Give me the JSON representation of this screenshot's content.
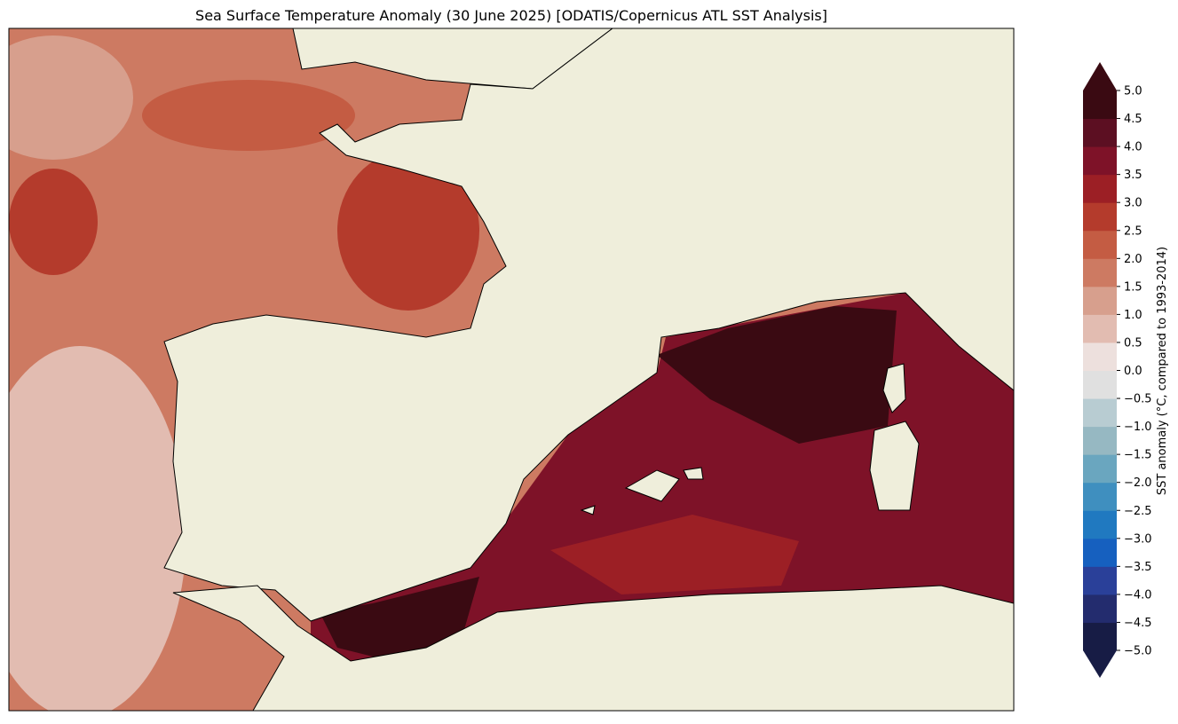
{
  "title": "Sea Surface Temperature Anomaly (30 June 2025) [ODATIS/Copernicus ATL SST Analysis]",
  "colorbar": {
    "label": "SST anomaly (°C, compared to 1993-2014)",
    "lim": [
      -5,
      5
    ],
    "ticks": [
      {
        "value": -5,
        "label": "−5.0"
      },
      {
        "value": -4.5,
        "label": "−4.5"
      },
      {
        "value": -4,
        "label": "−4.0"
      },
      {
        "value": -3.5,
        "label": "−3.5"
      },
      {
        "value": -3,
        "label": "−3.0"
      },
      {
        "value": -2.5,
        "label": "−2.5"
      },
      {
        "value": -2,
        "label": "−2.0"
      },
      {
        "value": -1.5,
        "label": "−1.5"
      },
      {
        "value": -1,
        "label": "−1.0"
      },
      {
        "value": -0.5,
        "label": "−0.5"
      },
      {
        "value": 0,
        "label": "0.0"
      },
      {
        "value": 0.5,
        "label": "0.5"
      },
      {
        "value": 1,
        "label": "1.0"
      },
      {
        "value": 1.5,
        "label": "1.5"
      },
      {
        "value": 2,
        "label": "2.0"
      },
      {
        "value": 2.5,
        "label": "2.5"
      },
      {
        "value": 3,
        "label": "3.0"
      },
      {
        "value": 3.5,
        "label": "3.5"
      },
      {
        "value": 4,
        "label": "4.0"
      },
      {
        "value": 4.5,
        "label": "4.5"
      },
      {
        "value": 5,
        "label": "5.0"
      }
    ],
    "colors": [
      "#171c45",
      "#232c6e",
      "#2a4099",
      "#1660bf",
      "#2079c0",
      "#3f8fbf",
      "#6aa6bf",
      "#96b8c2",
      "#b8ccd2",
      "#e0e0e0",
      "#ede0dd",
      "#e2bcb1",
      "#d79f8d",
      "#cd7a62",
      "#c45c43",
      "#b43b2c",
      "#9c1f25",
      "#7e1228",
      "#5c0f22",
      "#3a0a12"
    ],
    "extend": true
  }
}
